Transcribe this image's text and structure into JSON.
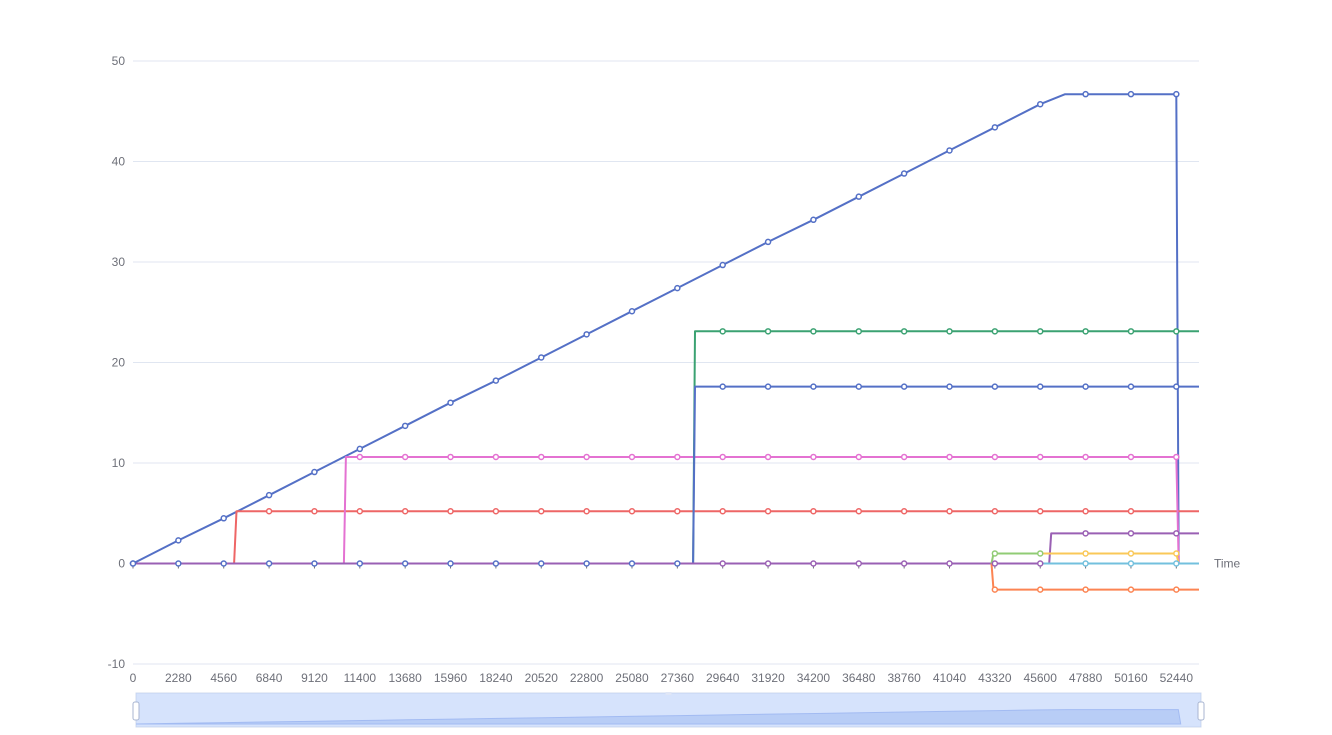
{
  "chart_data": {
    "type": "line",
    "x_axis_name": "Time",
    "xlim": [
      0,
      53580
    ],
    "ylim": [
      -10,
      50
    ],
    "x_ticks": [
      0,
      2280,
      4560,
      6840,
      9120,
      11400,
      13680,
      15960,
      18240,
      20520,
      22800,
      25080,
      27360,
      29640,
      31920,
      34200,
      36480,
      38760,
      41040,
      43320,
      45600,
      47880,
      50160,
      52440
    ],
    "y_ticks": [
      -10,
      0,
      10,
      20,
      30,
      40,
      50
    ],
    "grid": true,
    "legend": "none",
    "data_zoom_slider": true,
    "series": [
      {
        "color": "#5470c6",
        "points": [
          [
            0,
            0
          ],
          [
            2280,
            2.3
          ],
          [
            4560,
            4.5
          ],
          [
            6840,
            6.8
          ],
          [
            9120,
            9.1
          ],
          [
            11400,
            11.4
          ],
          [
            13680,
            13.7
          ],
          [
            15960,
            16.0
          ],
          [
            18240,
            18.2
          ],
          [
            20520,
            20.5
          ],
          [
            22800,
            22.8
          ],
          [
            25080,
            25.1
          ],
          [
            27360,
            27.4
          ],
          [
            29640,
            29.7
          ],
          [
            31920,
            32.0
          ],
          [
            34200,
            34.2
          ],
          [
            36480,
            36.5
          ],
          [
            38760,
            38.8
          ],
          [
            41040,
            41.1
          ],
          [
            43320,
            43.4
          ],
          [
            45600,
            45.7
          ],
          [
            46850,
            46.7
          ],
          [
            47880,
            46.7
          ],
          [
            50160,
            46.7
          ],
          [
            52440,
            46.7
          ],
          [
            52560,
            0
          ]
        ],
        "markers": [
          0,
          2280,
          4560,
          6840,
          9120,
          11400,
          13680,
          15960,
          18240,
          20520,
          22800,
          25080,
          27360,
          29640,
          31920,
          34200,
          36480,
          38760,
          41040,
          43320,
          45600,
          47880,
          50160,
          52440
        ]
      },
      {
        "color": "#ee6666",
        "points": [
          [
            0,
            0
          ],
          [
            5080,
            0
          ],
          [
            5200,
            5.2
          ],
          [
            6840,
            5.2
          ],
          [
            9120,
            5.2
          ],
          [
            11400,
            5.2
          ],
          [
            13680,
            5.2
          ],
          [
            15960,
            5.2
          ],
          [
            18240,
            5.2
          ],
          [
            20520,
            5.2
          ],
          [
            22800,
            5.2
          ],
          [
            25080,
            5.2
          ],
          [
            27360,
            5.2
          ],
          [
            29640,
            5.2
          ],
          [
            31920,
            5.2
          ],
          [
            34200,
            5.2
          ],
          [
            36480,
            5.2
          ],
          [
            38760,
            5.2
          ],
          [
            41040,
            5.2
          ],
          [
            43320,
            5.2
          ],
          [
            45600,
            5.2
          ],
          [
            47880,
            5.2
          ],
          [
            50160,
            5.2
          ],
          [
            52440,
            5.2
          ],
          [
            53580,
            5.2
          ]
        ],
        "markers": [
          6840,
          9120,
          11400,
          13680,
          15960,
          18240,
          20520,
          22800,
          25080,
          27360,
          29640,
          31920,
          34200,
          36480,
          38760,
          41040,
          43320,
          45600,
          47880,
          50160
        ]
      },
      {
        "color": "#e472d2",
        "points": [
          [
            0,
            0
          ],
          [
            10600,
            0
          ],
          [
            10700,
            10.6
          ],
          [
            11400,
            10.6
          ],
          [
            13680,
            10.6
          ],
          [
            15960,
            10.6
          ],
          [
            18240,
            10.6
          ],
          [
            20520,
            10.6
          ],
          [
            22800,
            10.6
          ],
          [
            25080,
            10.6
          ],
          [
            27360,
            10.6
          ],
          [
            29640,
            10.6
          ],
          [
            31920,
            10.6
          ],
          [
            34200,
            10.6
          ],
          [
            36480,
            10.6
          ],
          [
            38760,
            10.6
          ],
          [
            41040,
            10.6
          ],
          [
            43320,
            10.6
          ],
          [
            45600,
            10.6
          ],
          [
            47880,
            10.6
          ],
          [
            50160,
            10.6
          ],
          [
            52440,
            10.6
          ],
          [
            52560,
            0
          ]
        ],
        "markers": [
          11400,
          13680,
          15960,
          18240,
          20520,
          22800,
          25080,
          27360,
          29640,
          31920,
          34200,
          36480,
          38760,
          41040,
          43320,
          45600,
          47880,
          50160,
          52440
        ]
      },
      {
        "color": "#3ba272",
        "points": [
          [
            0,
            0
          ],
          [
            28150,
            0
          ],
          [
            28250,
            23.1
          ],
          [
            29640,
            23.1
          ],
          [
            31920,
            23.1
          ],
          [
            34200,
            23.1
          ],
          [
            36480,
            23.1
          ],
          [
            38760,
            23.1
          ],
          [
            41040,
            23.1
          ],
          [
            43320,
            23.1
          ],
          [
            45600,
            23.1
          ],
          [
            47880,
            23.1
          ],
          [
            50160,
            23.1
          ],
          [
            52440,
            23.1
          ],
          [
            53580,
            23.1
          ]
        ],
        "markers": [
          29640,
          31920,
          34200,
          36480,
          38760,
          41040,
          43320,
          45600,
          47880,
          50160,
          52440
        ]
      },
      {
        "color": "#5470c6",
        "points": [
          [
            0,
            0
          ],
          [
            28150,
            0
          ],
          [
            28250,
            17.6
          ],
          [
            29640,
            17.6
          ],
          [
            31920,
            17.6
          ],
          [
            34200,
            17.6
          ],
          [
            36480,
            17.6
          ],
          [
            38760,
            17.6
          ],
          [
            41040,
            17.6
          ],
          [
            43320,
            17.6
          ],
          [
            45600,
            17.6
          ],
          [
            47880,
            17.6
          ],
          [
            50160,
            17.6
          ],
          [
            52440,
            17.6
          ],
          [
            53580,
            17.6
          ]
        ],
        "markers": [
          0,
          2280,
          4560,
          6840,
          9120,
          11400,
          13680,
          15960,
          18240,
          20520,
          22800,
          25080,
          27360,
          29640,
          31920,
          34200,
          36480,
          38760,
          41040,
          43320,
          45600,
          47880,
          50160,
          52440
        ]
      },
      {
        "color": "#9a60b4",
        "points": [
          [
            0,
            0
          ],
          [
            45600,
            0
          ],
          [
            46050,
            0
          ],
          [
            46150,
            3.0
          ],
          [
            47880,
            3.0
          ],
          [
            50160,
            3.0
          ],
          [
            52440,
            3.0
          ],
          [
            53580,
            3.0
          ]
        ],
        "markers": [
          29640,
          31920,
          34200,
          36480,
          38760,
          41040,
          43320,
          45600,
          47880,
          50160,
          52440
        ]
      },
      {
        "color": "#91cc75",
        "points": [
          [
            43150,
            0
          ],
          [
            43250,
            1.0
          ],
          [
            45600,
            1.0
          ],
          [
            47880,
            1.0
          ]
        ],
        "markers": [
          43320,
          45600
        ]
      },
      {
        "color": "#fac858",
        "points": [
          [
            45600,
            1.0
          ],
          [
            47880,
            1.0
          ],
          [
            50160,
            1.0
          ],
          [
            52440,
            1.0
          ],
          [
            52560,
            0
          ]
        ],
        "markers": [
          47880,
          50160,
          52440
        ]
      },
      {
        "color": "#73c0de",
        "points": [
          [
            45600,
            0
          ],
          [
            47880,
            0
          ],
          [
            50160,
            0
          ],
          [
            52440,
            0
          ],
          [
            53580,
            0
          ]
        ],
        "markers": [
          47880,
          50160,
          52440
        ]
      },
      {
        "color": "#fc8452",
        "points": [
          [
            43150,
            0
          ],
          [
            43250,
            -2.6
          ],
          [
            45600,
            -2.6
          ],
          [
            47880,
            -2.6
          ],
          [
            50160,
            -2.6
          ],
          [
            52440,
            -2.6
          ],
          [
            53580,
            -2.6
          ]
        ],
        "markers": [
          43320,
          45600,
          47880,
          50160,
          52440
        ]
      }
    ]
  }
}
